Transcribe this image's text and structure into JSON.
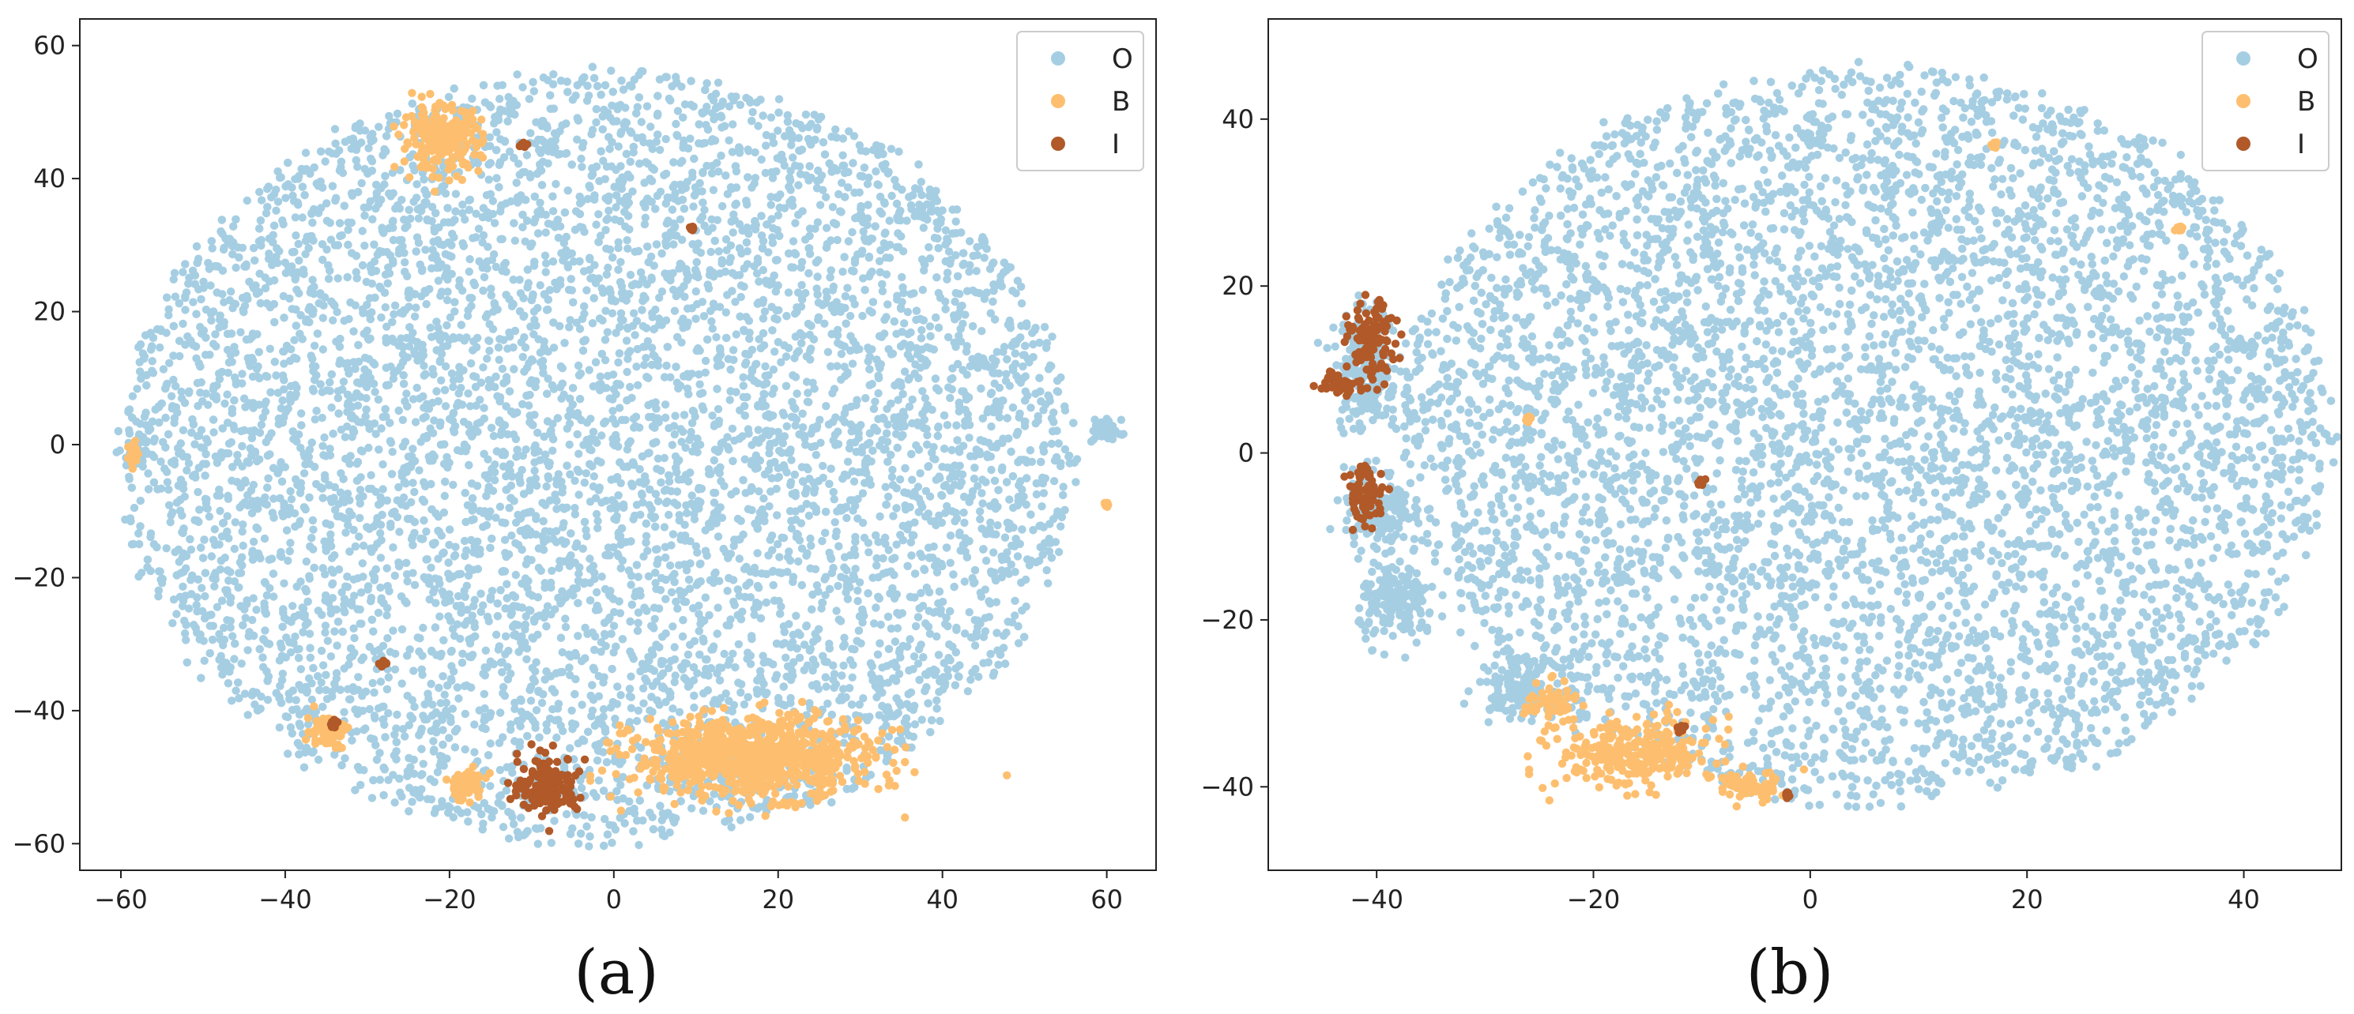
{
  "chart_data": [
    {
      "type": "scatter",
      "caption": "(a)",
      "xlim": [
        -65,
        66
      ],
      "ylim": [
        -64,
        64
      ],
      "xticks": [
        -60,
        -40,
        -20,
        0,
        20,
        40,
        60
      ],
      "yticks": [
        -60,
        -40,
        -20,
        0,
        20,
        40,
        60
      ],
      "xtick_labels": [
        "−60",
        "−40",
        "−20",
        "0",
        "20",
        "40",
        "60"
      ],
      "ytick_labels": [
        "−60",
        "−40",
        "−20",
        "0",
        "20",
        "40",
        "60"
      ],
      "grid": false,
      "legend_position": "top-right",
      "series": [
        {
          "name": "O",
          "color": "#a6cee3",
          "description": "dense roughly elliptical cloud of points",
          "cloud": {
            "cx": -2,
            "cy": -2,
            "rx": 58,
            "ry": 58
          },
          "clusters": [
            {
              "x": -58,
              "y": -1,
              "spread": 1.5
            },
            {
              "x": 60,
              "y": 2,
              "spread": 1.5
            }
          ]
        },
        {
          "name": "B",
          "color": "#fdbf6f",
          "clusters": [
            {
              "x": 17,
              "y": -47,
              "sx": 12,
              "sy": 5
            },
            {
              "x": -35,
              "y": -43,
              "sx": 2,
              "sy": 2
            },
            {
              "x": -18,
              "y": -51,
              "sx": 2,
              "sy": 2
            },
            {
              "x": -21,
              "y": 46,
              "sx": 4,
              "sy": 4
            },
            {
              "x": -58.5,
              "y": -1.5,
              "sx": 0.6,
              "sy": 2
            },
            {
              "x": 60,
              "y": -9,
              "sx": 0.3,
              "sy": 0.3
            }
          ]
        },
        {
          "name": "I",
          "color": "#b15928",
          "clusters": [
            {
              "x": -8,
              "y": -51,
              "sx": 3,
              "sy": 3.5
            },
            {
              "x": 9.5,
              "y": 32.5,
              "sx": 0.3,
              "sy": 0.3
            },
            {
              "x": -11,
              "y": 45,
              "sx": 0.5,
              "sy": 0.5
            },
            {
              "x": -28,
              "y": -33,
              "sx": 0.4,
              "sy": 0.4
            },
            {
              "x": -34,
              "y": -42,
              "sx": 0.4,
              "sy": 0.4
            }
          ]
        }
      ]
    },
    {
      "type": "scatter",
      "caption": "(b)",
      "xlim": [
        -50,
        49
      ],
      "ylim": [
        -50,
        52
      ],
      "xticks": [
        -40,
        -20,
        0,
        20,
        40
      ],
      "yticks": [
        -40,
        -20,
        0,
        20,
        40
      ],
      "xtick_labels": [
        "−40",
        "−20",
        "0",
        "20",
        "40"
      ],
      "ytick_labels": [
        "−40",
        "−20",
        "0",
        "20",
        "40"
      ],
      "grid": false,
      "legend_position": "top-right",
      "series": [
        {
          "name": "O",
          "color": "#a6cee3",
          "description": "large dense cloud with a detached band on the left",
          "cloud": {
            "cx": 5,
            "cy": 2,
            "rx": 43,
            "ry": 44
          },
          "clusters": [
            {
              "x": -41,
              "y": 10,
              "sx": 2.5,
              "sy": 6
            },
            {
              "x": -40,
              "y": -7,
              "sx": 2.5,
              "sy": 4
            },
            {
              "x": -38,
              "y": -18,
              "sx": 3,
              "sy": 4
            },
            {
              "x": -27,
              "y": -28,
              "sx": 3,
              "sy": 3
            }
          ]
        },
        {
          "name": "B",
          "color": "#fdbf6f",
          "clusters": [
            {
              "x": -16,
              "y": -36,
              "sx": 6,
              "sy": 3.5
            },
            {
              "x": -24,
              "y": -30,
              "sx": 2,
              "sy": 2
            },
            {
              "x": -6,
              "y": -40,
              "sx": 2.5,
              "sy": 1.5
            },
            {
              "x": 34,
              "y": 27,
              "sx": 0.3,
              "sy": 0.3
            },
            {
              "x": -26,
              "y": 4,
              "sx": 0.3,
              "sy": 0.3
            },
            {
              "x": 17,
              "y": 37,
              "sx": 0.3,
              "sy": 0.3
            }
          ]
        },
        {
          "name": "I",
          "color": "#b15928",
          "clusters": [
            {
              "x": -40.5,
              "y": 13,
              "sx": 1.8,
              "sy": 4
            },
            {
              "x": -43.5,
              "y": 8.5,
              "sx": 1.5,
              "sy": 1.2
            },
            {
              "x": -41,
              "y": -5,
              "sx": 1.5,
              "sy": 3
            },
            {
              "x": -10,
              "y": -3.5,
              "sx": 0.3,
              "sy": 0.3
            },
            {
              "x": -12,
              "y": -33,
              "sx": 0.3,
              "sy": 0.3
            },
            {
              "x": -2,
              "y": -41,
              "sx": 0.3,
              "sy": 0.3
            }
          ]
        }
      ]
    }
  ]
}
